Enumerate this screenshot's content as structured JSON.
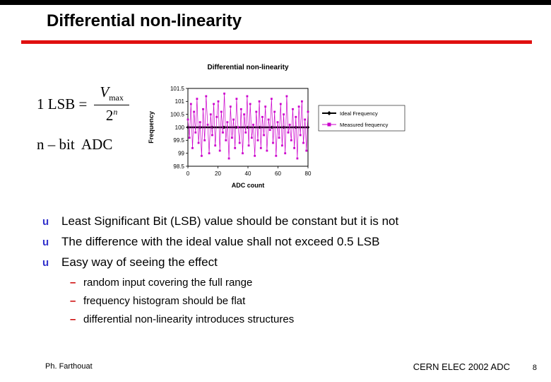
{
  "slide": {
    "title": "Differential non-linearity"
  },
  "colors": {
    "accent_rule": "#e01010",
    "bullet": "#3333cc",
    "sub_dash": "#cc0000",
    "ideal": "#000000",
    "measured": "#cc00cc"
  },
  "glyphs": {
    "bullet": "u",
    "sub_dash": "–"
  },
  "formula": {
    "line1_lhs": "1 LSB =",
    "numerator_var": "V",
    "numerator_sub": "max",
    "denominator_base": "2",
    "denominator_exp": "n",
    "line2": "n – bit  ADC"
  },
  "chart_data": {
    "type": "line",
    "title": "Differential non-linearity",
    "ylabel": "Frequency",
    "xlabel": "ADC count",
    "ylim": [
      98.5,
      101.5
    ],
    "xlim": [
      0,
      80
    ],
    "y_ticks": [
      "101.5",
      "101",
      "100.5",
      "100",
      "99.5",
      "99",
      "98.5"
    ],
    "x_ticks": [
      "0",
      "20",
      "40",
      "60",
      "80"
    ],
    "grid": false,
    "legend_position": "right",
    "legend": [
      {
        "label": "Ideal Frequency",
        "marker": "diamond",
        "color": "#000000"
      },
      {
        "label": "Measured frequency",
        "marker": "square",
        "color": "#cc00cc"
      }
    ],
    "series": [
      {
        "name": "Ideal Frequency",
        "type": "constant",
        "value": 100
      },
      {
        "name": "Measured frequency",
        "type": "points",
        "values": [
          100.3,
          99.6,
          100.9,
          99.2,
          100.6,
          99.8,
          101.1,
          99.4,
          100.2,
          98.9,
          100.7,
          99.5,
          101.2,
          100.1,
          99.0,
          100.5,
          99.7,
          100.9,
          99.3,
          100.4,
          101.0,
          99.1,
          100.6,
          99.8,
          101.3,
          99.5,
          100.2,
          98.8,
          100.8,
          99.6,
          100.3,
          99.2,
          101.1,
          100.0,
          99.4,
          100.7,
          99.0,
          100.5,
          99.8,
          101.2,
          99.3,
          100.9,
          99.6,
          100.1,
          98.9,
          100.6,
          99.5,
          101.0,
          99.2,
          100.4,
          99.7,
          100.8,
          99.1,
          100.3,
          99.9,
          101.1,
          99.4,
          100.6,
          98.9,
          100.2,
          99.6,
          100.9,
          99.3,
          100.5,
          99.0,
          101.2,
          99.8,
          100.1,
          99.5,
          100.7,
          99.2,
          100.4,
          98.8,
          100.8,
          99.7,
          101.0,
          99.4,
          100.3,
          99.1,
          100.6
        ]
      }
    ]
  },
  "bullets": [
    "Least Significant Bit (LSB) value should be constant but it is not",
    "The difference with the ideal value shall not exceed 0.5 LSB",
    "Easy way of seeing the effect"
  ],
  "sub_bullets": [
    "random input covering the full range",
    "frequency histogram should be flat",
    "differential non-linearity introduces structures"
  ],
  "footer": {
    "author": "Ph. Farthouat",
    "conference": "CERN ELEC 2002 ADC",
    "page_number": "8"
  }
}
